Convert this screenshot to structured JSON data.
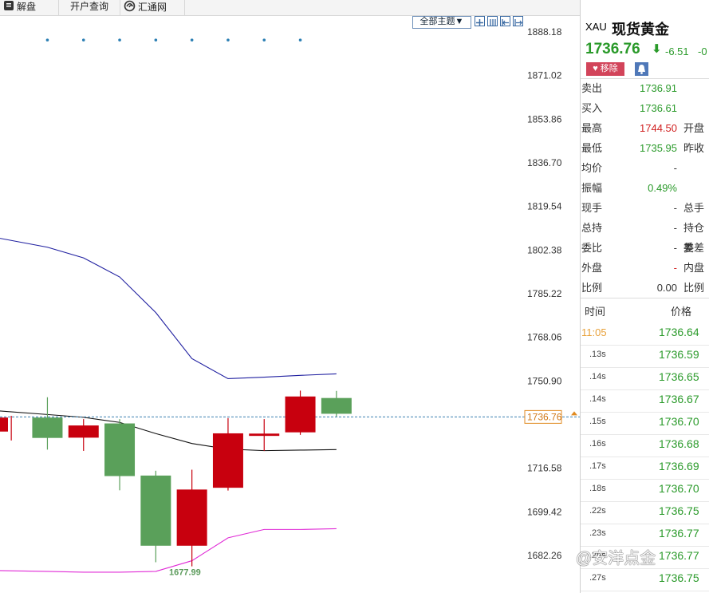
{
  "toolbar": {
    "tabs": [
      {
        "label": "解盘",
        "icon": "book-icon"
      },
      {
        "label": "开户查询",
        "icon": ""
      },
      {
        "label": "汇通网",
        "icon": "swirl-icon"
      }
    ],
    "theme_label": "全部主题▼",
    "tool_icons": [
      "grid-icon",
      "columns-icon",
      "chart-left-icon",
      "chart-right-icon"
    ]
  },
  "chart_data": {
    "type": "candlestick",
    "y_axis_labels": [
      "1888.18",
      "1871.02",
      "1853.86",
      "1836.70",
      "1819.54",
      "1802.38",
      "1785.22",
      "1768.06",
      "1750.90",
      "1716.58",
      "1699.42",
      "1682.26"
    ],
    "ylim": [
      1676.0,
      1893.0
    ],
    "current_price_label": "1736.76",
    "current_price": 1736.76,
    "min_label": "1677.99",
    "min_value": 1677.99,
    "candles": [
      {
        "open": 1731.0,
        "close": 1736.5,
        "high": 1737.2,
        "low": 1727.5,
        "color": "red"
      },
      {
        "open": 1736.5,
        "close": 1728.5,
        "high": 1744.5,
        "low": 1723.9,
        "color": "green"
      },
      {
        "open": 1728.6,
        "close": 1733.4,
        "high": 1735.9,
        "low": 1723.4,
        "color": "red"
      },
      {
        "open": 1734.2,
        "close": 1713.5,
        "high": 1735.9,
        "low": 1707.9,
        "color": "green"
      },
      {
        "open": 1713.7,
        "close": 1686.1,
        "high": 1715.6,
        "low": 1679.6,
        "color": "green"
      },
      {
        "open": 1686.1,
        "close": 1708.2,
        "high": 1716.0,
        "low": 1677.99,
        "color": "red"
      },
      {
        "open": 1708.9,
        "close": 1730.3,
        "high": 1736.3,
        "low": 1707.8,
        "color": "red"
      },
      {
        "open": 1729.3,
        "close": 1730.2,
        "high": 1735.9,
        "low": 1723.4,
        "color": "red"
      },
      {
        "open": 1730.7,
        "close": 1744.8,
        "high": 1747.1,
        "low": 1729.7,
        "color": "red"
      },
      {
        "open": 1744.2,
        "close": 1738.0,
        "high": 1747.0,
        "low": 1736.9,
        "color": "green"
      }
    ],
    "upper_band": [
      1807.0,
      1803.5,
      1799.3,
      1791.8,
      1777.8,
      1759.7,
      1751.8,
      1752.4,
      1753.1,
      1753.7
    ],
    "middle_band": [
      1739.1,
      1737.7,
      1736.6,
      1734.6,
      1730.2,
      1726.3,
      1724.1,
      1723.5,
      1723.7,
      1723.9
    ],
    "lower_band": [
      1676.3,
      1676.0,
      1675.7,
      1675.7,
      1676.0,
      1680.2,
      1689.2,
      1692.5,
      1692.5,
      1692.8
    ],
    "top_dots_price": 1885.0,
    "top_dot_candles": [
      1,
      2,
      3,
      4,
      5,
      6,
      7,
      8
    ]
  },
  "panel": {
    "symbol": "XAU",
    "name": "现货黄金",
    "price": "1736.76",
    "arrow": "⬇",
    "change": "-6.51",
    "change_pct": "-0",
    "remove_label": "移除",
    "quote_rows": [
      {
        "k": "卖出",
        "v": "1736.91",
        "color": "#2a9a2a",
        "k2": ""
      },
      {
        "k": "买入",
        "v": "1736.61",
        "color": "#2a9a2a",
        "k2": ""
      },
      {
        "k": "最高",
        "v": "1744.50",
        "color": "#d02020",
        "k2": "开盘"
      },
      {
        "k": "最低",
        "v": "1735.95",
        "color": "#2a9a2a",
        "k2": "昨收"
      },
      {
        "k": "均价",
        "v": "-",
        "color": "#333333",
        "k2": ""
      },
      {
        "k": "振幅",
        "v": "0.49%",
        "color": "#2a9a2a",
        "k2": ""
      },
      {
        "k": "现手",
        "v": "-",
        "color": "#333333",
        "k2": "总手"
      },
      {
        "k": "总持",
        "v": "-",
        "color": "#333333",
        "k2": "持仓差"
      },
      {
        "k": "委比",
        "v": "-",
        "color": "#333333",
        "k2": "委差"
      },
      {
        "k": "外盘",
        "v": "-",
        "color": "#d02020",
        "k2": "内盘"
      },
      {
        "k": "比例",
        "v": "0.00",
        "color": "#333333",
        "k2": "比例"
      }
    ],
    "trades_header": {
      "time": "时间",
      "price": "价格"
    },
    "trades": [
      {
        "t": "11:05",
        "p": "1736.64"
      },
      {
        "t": ".13s",
        "p": "1736.59"
      },
      {
        "t": ".14s",
        "p": "1736.65"
      },
      {
        "t": ".14s",
        "p": "1736.67"
      },
      {
        "t": ".15s",
        "p": "1736.70"
      },
      {
        "t": ".16s",
        "p": "1736.68"
      },
      {
        "t": ".17s",
        "p": "1736.69"
      },
      {
        "t": ".18s",
        "p": "1736.70"
      },
      {
        "t": ".22s",
        "p": "1736.75"
      },
      {
        "t": ".23s",
        "p": "1736.77"
      },
      {
        "t": ".26s",
        "p": "1736.77"
      },
      {
        "t": ".27s",
        "p": "1736.75"
      }
    ]
  },
  "watermark": "@安洋点金",
  "colors": {
    "up": "#c8000e",
    "down": "#5aa05a",
    "upper_band": "#1f1fa0",
    "middle_band": "#111111",
    "lower_band": "#e02ad6",
    "price_line": "#3a7fb0",
    "price_box": "#e08a20"
  }
}
